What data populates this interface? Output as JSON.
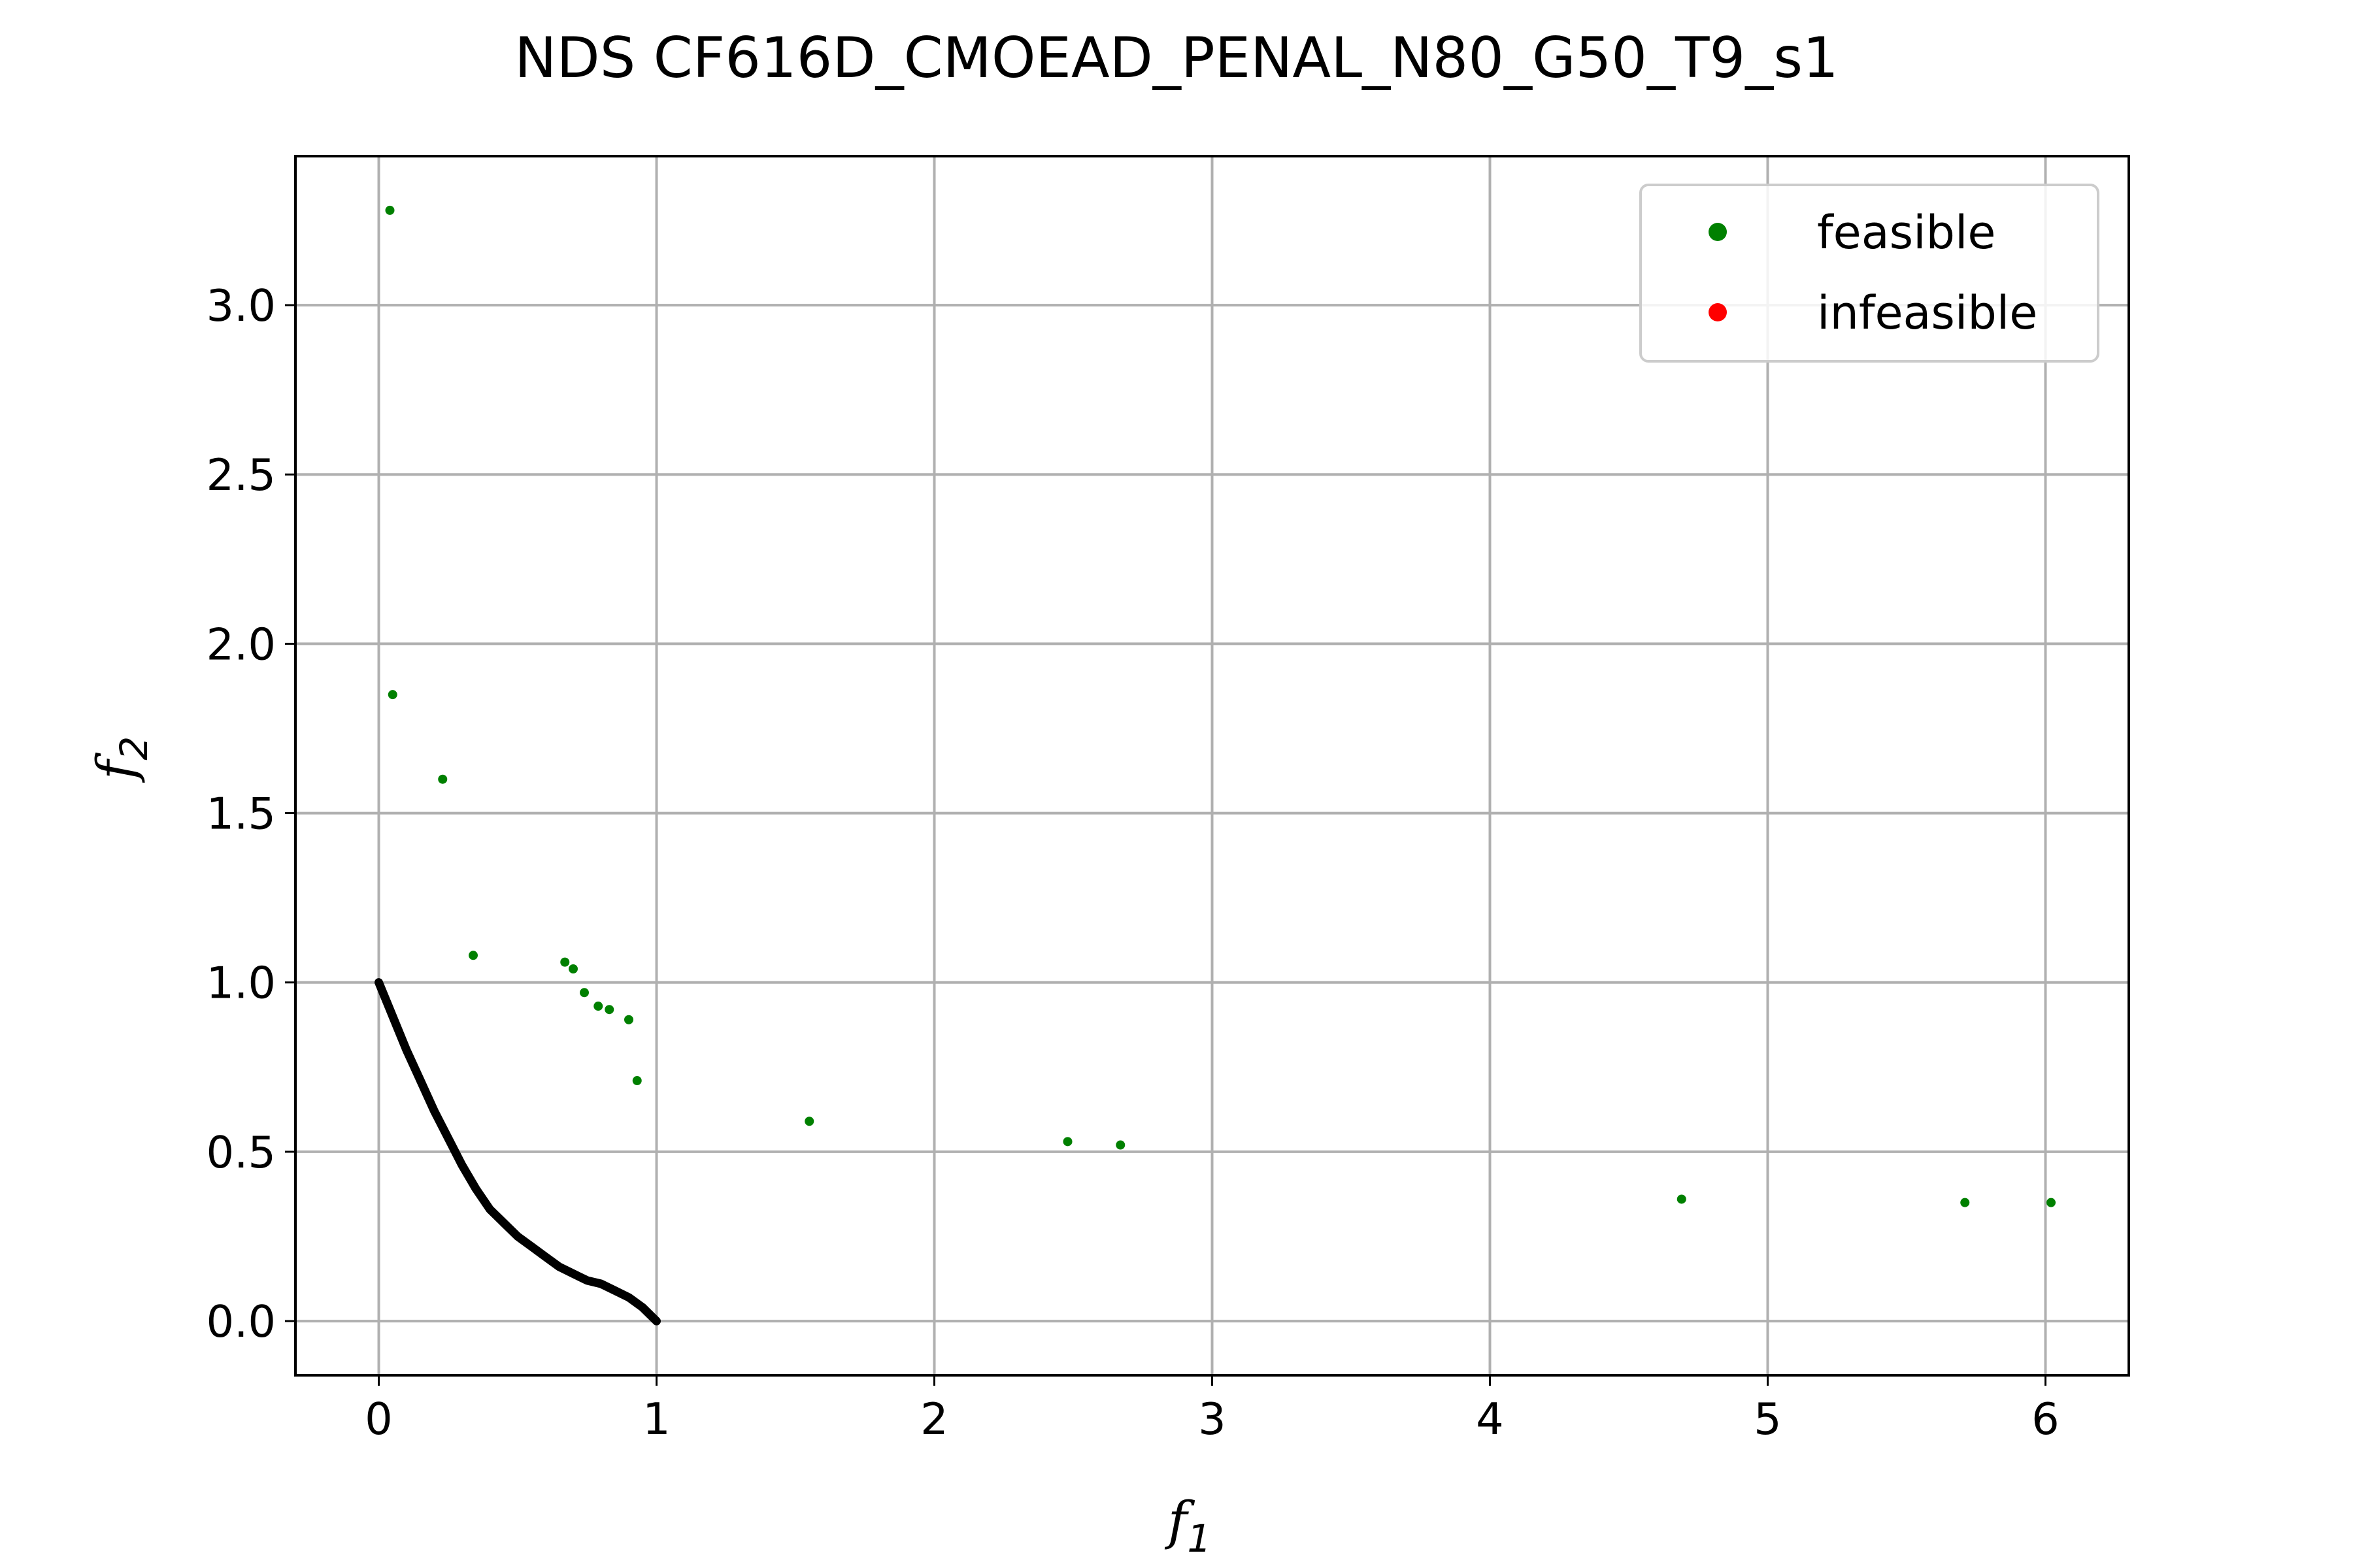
{
  "chart_data": {
    "type": "scatter",
    "title": "NDS CF616D_CMOEAD_PENAL_N80_G50_T9_s1",
    "xlabel": {
      "base": "f",
      "sub": "1"
    },
    "ylabel": {
      "base": "f",
      "sub": "2"
    },
    "xlim": [
      -0.3,
      6.3
    ],
    "ylim": [
      -0.16,
      3.44
    ],
    "xticks": [
      0,
      1,
      2,
      3,
      4,
      5,
      6
    ],
    "xtick_labels": [
      "0",
      "1",
      "2",
      "3",
      "4",
      "5",
      "6"
    ],
    "yticks": [
      0.0,
      0.5,
      1.0,
      1.5,
      2.0,
      2.5,
      3.0
    ],
    "ytick_labels": [
      "0.0",
      "0.5",
      "1.0",
      "1.5",
      "2.0",
      "2.5",
      "3.0"
    ],
    "grid": true,
    "legend_position": "top-right",
    "colors": {
      "feasible": "#008000",
      "infeasible": "#ff0000",
      "front": "#000000"
    },
    "series": [
      {
        "name": "feasible",
        "points": [
          [
            0.04,
            3.28
          ],
          [
            0.05,
            1.85
          ],
          [
            0.23,
            1.6
          ],
          [
            0.34,
            1.08
          ],
          [
            0.67,
            1.06
          ],
          [
            0.7,
            1.04
          ],
          [
            0.74,
            0.97
          ],
          [
            0.79,
            0.93
          ],
          [
            0.83,
            0.92
          ],
          [
            0.9,
            0.89
          ],
          [
            0.93,
            0.71
          ],
          [
            1.55,
            0.59
          ],
          [
            2.48,
            0.53
          ],
          [
            2.67,
            0.52
          ],
          [
            4.69,
            0.36
          ],
          [
            5.71,
            0.35
          ],
          [
            6.02,
            0.35
          ]
        ]
      },
      {
        "name": "infeasible",
        "points": []
      }
    ],
    "front_curve": [
      [
        0.0,
        1.0
      ],
      [
        0.05,
        0.9
      ],
      [
        0.1,
        0.8
      ],
      [
        0.15,
        0.71
      ],
      [
        0.2,
        0.62
      ],
      [
        0.25,
        0.54
      ],
      [
        0.3,
        0.46
      ],
      [
        0.35,
        0.39
      ],
      [
        0.4,
        0.33
      ],
      [
        0.45,
        0.29
      ],
      [
        0.5,
        0.25
      ],
      [
        0.55,
        0.22
      ],
      [
        0.6,
        0.19
      ],
      [
        0.65,
        0.16
      ],
      [
        0.7,
        0.14
      ],
      [
        0.75,
        0.12
      ],
      [
        0.8,
        0.11
      ],
      [
        0.85,
        0.09
      ],
      [
        0.9,
        0.07
      ],
      [
        0.95,
        0.04
      ],
      [
        1.0,
        0.0
      ]
    ]
  }
}
